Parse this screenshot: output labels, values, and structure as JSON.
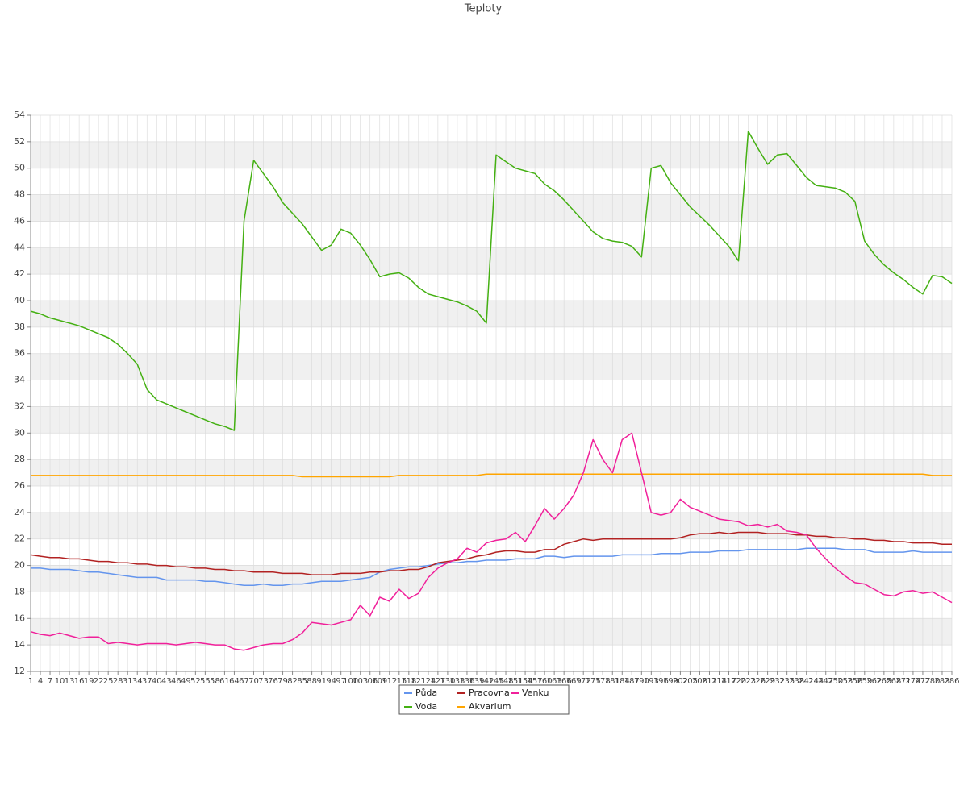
{
  "chart_data": {
    "type": "line",
    "title": "Teploty",
    "categories": [
      1,
      4,
      7,
      10,
      13,
      16,
      19,
      22,
      25,
      28,
      31,
      34,
      37,
      40,
      43,
      46,
      49,
      52,
      55,
      58,
      61,
      64,
      67,
      70,
      73,
      76,
      79,
      82,
      85,
      88,
      91,
      94,
      97,
      100,
      103,
      106,
      109,
      112,
      115,
      118,
      121,
      124,
      127,
      130,
      133,
      136,
      139,
      142,
      145,
      148,
      151,
      154,
      157,
      160,
      163,
      166,
      169,
      172,
      175,
      178,
      181,
      184,
      187,
      190,
      193,
      196,
      199,
      202,
      205,
      208,
      211,
      214,
      217,
      220,
      223,
      226,
      229,
      232,
      235,
      238,
      241,
      244,
      247,
      250,
      253,
      256,
      259,
      262,
      265,
      268,
      271,
      274,
      277,
      280,
      283,
      286
    ],
    "series": [
      {
        "name": "Půda",
        "color": "#6495ed",
        "values": [
          19.8,
          19.8,
          19.7,
          19.7,
          19.7,
          19.6,
          19.5,
          19.5,
          19.4,
          19.3,
          19.2,
          19.1,
          19.1,
          19.1,
          18.9,
          18.9,
          18.9,
          18.9,
          18.8,
          18.8,
          18.7,
          18.6,
          18.5,
          18.5,
          18.6,
          18.5,
          18.5,
          18.6,
          18.6,
          18.7,
          18.8,
          18.8,
          18.8,
          18.9,
          19.0,
          19.1,
          19.5,
          19.7,
          19.8,
          19.9,
          19.9,
          20.0,
          20.1,
          20.2,
          20.2,
          20.3,
          20.3,
          20.4,
          20.4,
          20.4,
          20.5,
          20.5,
          20.5,
          20.7,
          20.7,
          20.6,
          20.7,
          20.7,
          20.7,
          20.7,
          20.7,
          20.8,
          20.8,
          20.8,
          20.8,
          20.9,
          20.9,
          20.9,
          21.0,
          21.0,
          21.0,
          21.1,
          21.1,
          21.1,
          21.2,
          21.2,
          21.2,
          21.2,
          21.2,
          21.2,
          21.3,
          21.3,
          21.3,
          21.3,
          21.2,
          21.2,
          21.2,
          21.0,
          21.0,
          21.0,
          21.0,
          21.1,
          21.0,
          21.0,
          21.0,
          21.0
        ]
      },
      {
        "name": "Voda",
        "color": "#44b012",
        "values": [
          39.2,
          39.0,
          38.7,
          38.5,
          38.3,
          38.1,
          37.8,
          37.5,
          37.2,
          36.7,
          36.0,
          35.2,
          33.3,
          32.5,
          32.2,
          31.9,
          31.6,
          31.3,
          31.0,
          30.7,
          30.5,
          30.2,
          46.0,
          50.6,
          49.6,
          48.6,
          47.4,
          46.6,
          45.8,
          44.8,
          43.8,
          44.2,
          45.4,
          45.1,
          44.2,
          43.1,
          41.8,
          42.0,
          42.1,
          41.7,
          41.0,
          40.5,
          40.3,
          40.1,
          39.9,
          39.6,
          39.2,
          38.3,
          51.0,
          50.5,
          50.0,
          49.8,
          49.6,
          48.8,
          48.3,
          47.6,
          46.8,
          46.0,
          45.2,
          44.7,
          44.5,
          44.4,
          44.1,
          43.3,
          50.0,
          50.2,
          48.9,
          48.0,
          47.1,
          46.4,
          45.7,
          44.9,
          44.1,
          43.0,
          52.8,
          51.5,
          50.3,
          51.0,
          51.1,
          50.2,
          49.3,
          48.7,
          48.6,
          48.5,
          48.2,
          47.5,
          44.5,
          43.5,
          42.7,
          42.1,
          41.6,
          41.0,
          40.5,
          41.9,
          41.8,
          41.3
        ]
      },
      {
        "name": "Pracovna",
        "color": "#b22222",
        "values": [
          20.8,
          20.7,
          20.6,
          20.6,
          20.5,
          20.5,
          20.4,
          20.3,
          20.3,
          20.2,
          20.2,
          20.1,
          20.1,
          20.0,
          20.0,
          19.9,
          19.9,
          19.8,
          19.8,
          19.7,
          19.7,
          19.6,
          19.6,
          19.5,
          19.5,
          19.5,
          19.4,
          19.4,
          19.4,
          19.3,
          19.3,
          19.3,
          19.4,
          19.4,
          19.4,
          19.5,
          19.5,
          19.6,
          19.6,
          19.7,
          19.7,
          19.9,
          20.2,
          20.3,
          20.4,
          20.5,
          20.7,
          20.8,
          21.0,
          21.1,
          21.1,
          21.0,
          21.0,
          21.2,
          21.2,
          21.6,
          21.8,
          22.0,
          21.9,
          22.0,
          22.0,
          22.0,
          22.0,
          22.0,
          22.0,
          22.0,
          22.0,
          22.1,
          22.3,
          22.4,
          22.4,
          22.5,
          22.4,
          22.5,
          22.5,
          22.5,
          22.4,
          22.4,
          22.4,
          22.3,
          22.3,
          22.2,
          22.2,
          22.1,
          22.1,
          22.0,
          22.0,
          21.9,
          21.9,
          21.8,
          21.8,
          21.7,
          21.7,
          21.7,
          21.6,
          21.6
        ]
      },
      {
        "name": "Akvarium",
        "color": "#ffa500",
        "values": [
          26.8,
          26.8,
          26.8,
          26.8,
          26.8,
          26.8,
          26.8,
          26.8,
          26.8,
          26.8,
          26.8,
          26.8,
          26.8,
          26.8,
          26.8,
          26.8,
          26.8,
          26.8,
          26.8,
          26.8,
          26.8,
          26.8,
          26.8,
          26.8,
          26.8,
          26.8,
          26.8,
          26.8,
          26.7,
          26.7,
          26.7,
          26.7,
          26.7,
          26.7,
          26.7,
          26.7,
          26.7,
          26.7,
          26.8,
          26.8,
          26.8,
          26.8,
          26.8,
          26.8,
          26.8,
          26.8,
          26.8,
          26.9,
          26.9,
          26.9,
          26.9,
          26.9,
          26.9,
          26.9,
          26.9,
          26.9,
          26.9,
          26.9,
          26.9,
          26.9,
          26.9,
          26.9,
          26.9,
          26.9,
          26.9,
          26.9,
          26.9,
          26.9,
          26.9,
          26.9,
          26.9,
          26.9,
          26.9,
          26.9,
          26.9,
          26.9,
          26.9,
          26.9,
          26.9,
          26.9,
          26.9,
          26.9,
          26.9,
          26.9,
          26.9,
          26.9,
          26.9,
          26.9,
          26.9,
          26.9,
          26.9,
          26.9,
          26.9,
          26.8,
          26.8,
          26.8
        ]
      },
      {
        "name": "Venku",
        "color": "#f0209a",
        "values": [
          15.0,
          14.8,
          14.7,
          14.9,
          14.7,
          14.5,
          14.6,
          14.6,
          14.1,
          14.2,
          14.1,
          14.0,
          14.1,
          14.1,
          14.1,
          14.0,
          14.1,
          14.2,
          14.1,
          14.0,
          14.0,
          13.7,
          13.6,
          13.8,
          14.0,
          14.1,
          14.1,
          14.4,
          14.9,
          15.7,
          15.6,
          15.5,
          15.7,
          15.9,
          17.0,
          16.2,
          17.6,
          17.3,
          18.2,
          17.5,
          17.9,
          19.1,
          19.8,
          20.2,
          20.5,
          21.3,
          21.0,
          21.7,
          21.9,
          22.0,
          22.5,
          21.8,
          23.0,
          24.3,
          23.5,
          24.3,
          25.3,
          27.0,
          29.5,
          28.0,
          27.0,
          29.5,
          30.0,
          27.0,
          24.0,
          23.8,
          24.0,
          25.0,
          24.4,
          24.1,
          23.8,
          23.5,
          23.4,
          23.3,
          23.0,
          23.1,
          22.9,
          23.1,
          22.6,
          22.5,
          22.3,
          21.3,
          20.5,
          19.8,
          19.2,
          18.7,
          18.6,
          18.2,
          17.8,
          17.7,
          18.0,
          18.1,
          17.9,
          18.0,
          17.6,
          17.2
        ]
      }
    ],
    "ylim": [
      12,
      54
    ],
    "yticks": [
      12,
      14,
      16,
      18,
      20,
      22,
      24,
      26,
      28,
      30,
      32,
      34,
      36,
      38,
      40,
      42,
      44,
      46,
      48,
      50,
      52,
      54
    ],
    "grid": true,
    "legend": "bottom"
  }
}
